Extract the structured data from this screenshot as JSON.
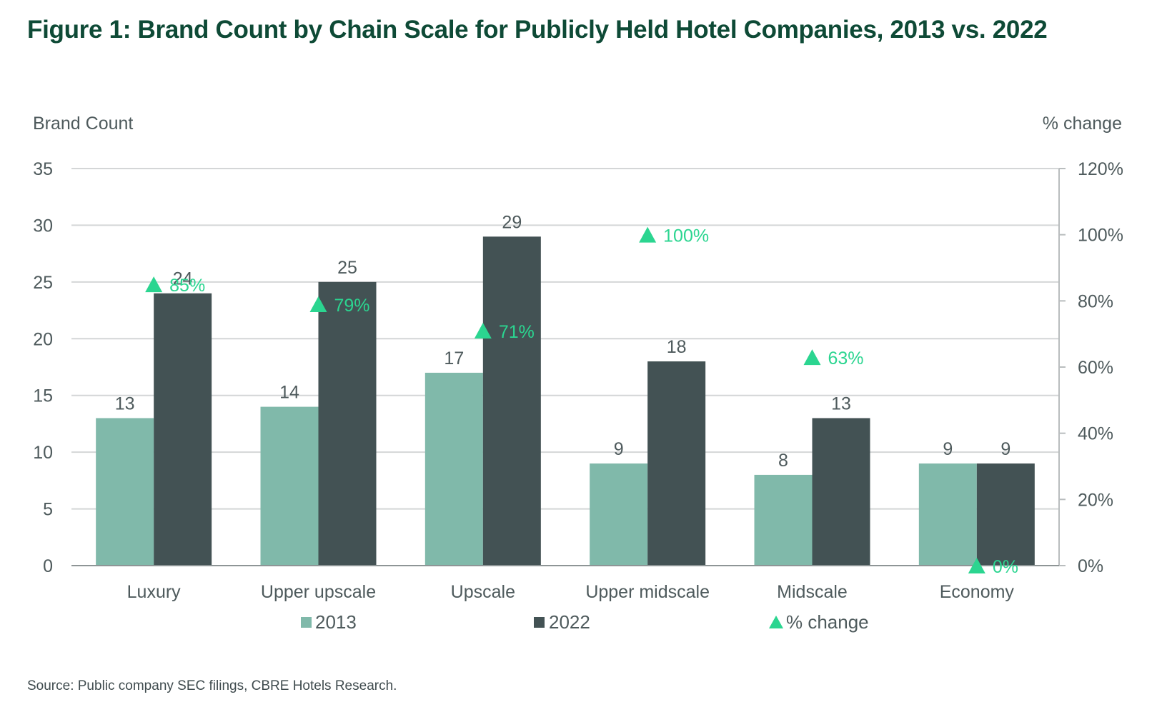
{
  "title": "Figure 1: Brand Count by Chain Scale for Publicly Held Hotel Companies, 2013 vs. 2022",
  "source": "Source: Public company SEC filings, CBRE Hotels Research.",
  "colors": {
    "title": "#0e4a36",
    "series_2013": "#80b9aa",
    "series_2022": "#435254",
    "pct_change": "#2bd590",
    "gridline": "#d4d6d7",
    "text": "#4e5a5c"
  },
  "chart_data": {
    "type": "bar",
    "title": "Brand Count by Chain Scale for Publicly Held Hotel Companies, 2013 vs. 2022",
    "xlabel": "",
    "ylabel": "Brand Count",
    "y2label": "% change",
    "ylim": [
      0,
      35
    ],
    "y2lim": [
      0,
      120
    ],
    "yticks": [
      0,
      5,
      10,
      15,
      20,
      25,
      30,
      35
    ],
    "yticks_labels": [
      "0",
      "5",
      "10",
      "15",
      "20",
      "25",
      "30",
      "35"
    ],
    "y2ticks": [
      0,
      20,
      40,
      60,
      80,
      100,
      120
    ],
    "y2ticks_labels": [
      "0%",
      "20%",
      "40%",
      "60%",
      "80%",
      "100%",
      "120%"
    ],
    "grid": true,
    "legend_position": "bottom",
    "categories": [
      "Luxury",
      "Upper upscale",
      "Upscale",
      "Upper midscale",
      "Midscale",
      "Economy"
    ],
    "series": [
      {
        "name": "2013",
        "type": "bar",
        "axis": "left",
        "values": [
          13,
          14,
          17,
          9,
          8,
          9
        ],
        "labels": [
          "13",
          "14",
          "17",
          "9",
          "8",
          "9"
        ]
      },
      {
        "name": "2022",
        "type": "bar",
        "axis": "left",
        "values": [
          24,
          25,
          29,
          18,
          13,
          9
        ],
        "labels": [
          "24",
          "25",
          "29",
          "18",
          "13",
          "9"
        ]
      },
      {
        "name": "% change",
        "type": "marker-triangle",
        "axis": "right",
        "values": [
          85,
          79,
          71,
          100,
          63,
          0
        ],
        "labels": [
          "85%",
          "79%",
          "71%",
          "100%",
          "63%",
          "0%"
        ]
      }
    ],
    "legend": [
      "2013",
      "2022",
      "% change"
    ]
  }
}
